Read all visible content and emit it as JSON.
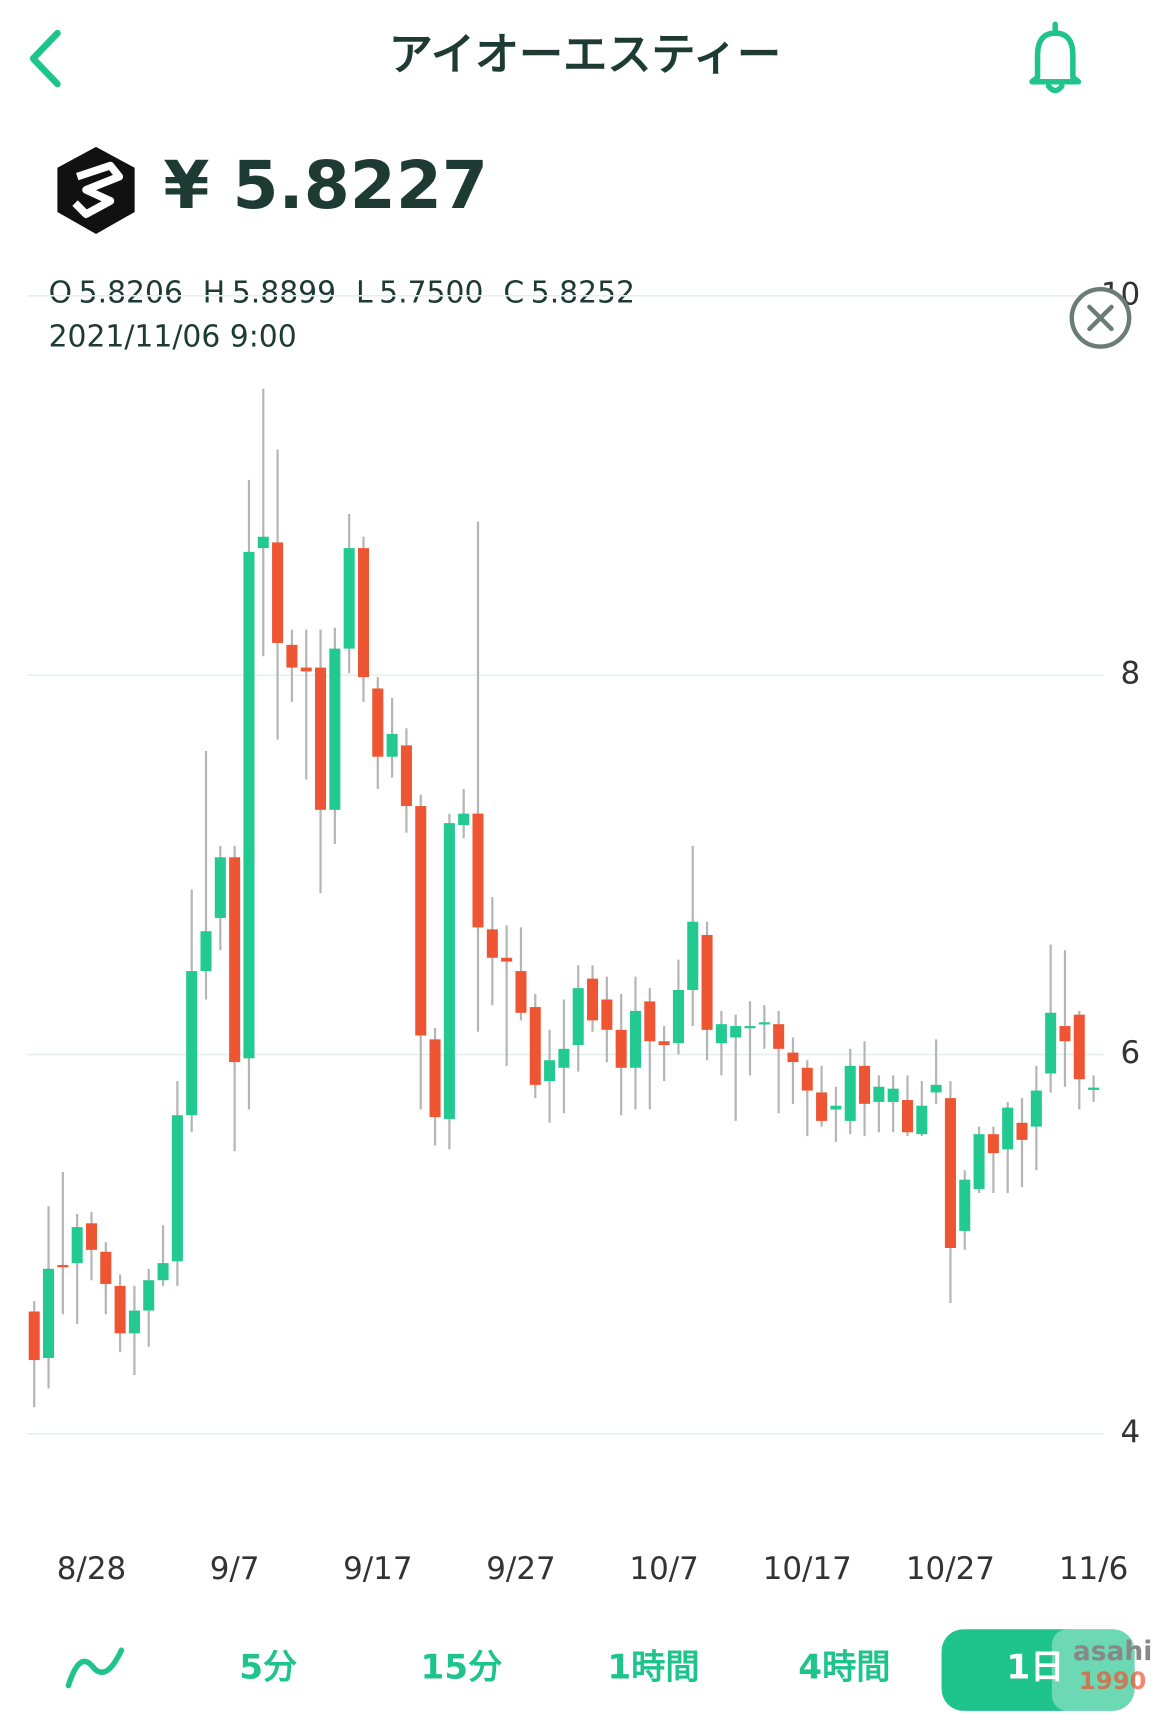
{
  "header": {
    "title": "アイオーエスティー"
  },
  "price": "¥ 5.8227",
  "ohlc": [
    {
      "label": "O",
      "value": "5.8206"
    },
    {
      "label": "H",
      "value": "5.8899"
    },
    {
      "label": "L",
      "value": "5.7500"
    },
    {
      "label": "C",
      "value": "5.8252"
    }
  ],
  "timestamp": "2021/11/06 9:00",
  "tabs": [
    "5分",
    "15分",
    "1時間",
    "4時間",
    "1日"
  ],
  "watermark": [
    "asahi",
    "1990"
  ],
  "chart_data": {
    "type": "candlestick",
    "categories": [
      null,
      null,
      null,
      null,
      "8/28",
      null,
      null,
      null,
      null,
      null,
      null,
      null,
      null,
      null,
      "9/7",
      null,
      null,
      null,
      null,
      null,
      null,
      null,
      null,
      null,
      "9/17",
      null,
      null,
      null,
      null,
      null,
      null,
      null,
      null,
      null,
      "9/27",
      null,
      null,
      null,
      null,
      null,
      null,
      null,
      null,
      null,
      "10/7",
      null,
      null,
      null,
      null,
      null,
      null,
      null,
      null,
      null,
      "10/17",
      null,
      null,
      null,
      null,
      null,
      null,
      null,
      null,
      null,
      "10/27",
      null,
      null,
      null,
      null,
      null,
      null,
      null,
      null,
      null,
      "11/6"
    ],
    "open": [
      4.645,
      4.4,
      4.89,
      4.9,
      5.11,
      4.96,
      4.78,
      4.53,
      4.65,
      4.81,
      4.91,
      5.68,
      6.44,
      6.72,
      7.04,
      5.98,
      8.67,
      8.7,
      8.16,
      8.04,
      8.04,
      7.29,
      8.14,
      8.67,
      7.93,
      7.57,
      7.63,
      7.31,
      6.08,
      5.66,
      7.21,
      7.27,
      6.66,
      6.51,
      6.44,
      6.25,
      5.86,
      5.93,
      6.05,
      6.4,
      6.29,
      6.13,
      5.93,
      6.28,
      6.07,
      6.06,
      6.34,
      6.63,
      6.06,
      6.09,
      6.15,
      6.16,
      6.16,
      6.01,
      5.93,
      5.8,
      5.71,
      5.65,
      5.94,
      5.75,
      5.75,
      5.76,
      5.58,
      5.8,
      5.77,
      5.07,
      5.29,
      5.58,
      5.5,
      5.64,
      5.62,
      5.9,
      6.15,
      6.21,
      5.8206
    ],
    "high": [
      4.7,
      5.2,
      5.38,
      5.16,
      5.17,
      5.01,
      4.84,
      4.78,
      4.87,
      5.1,
      5.86,
      6.87,
      7.6,
      7.1,
      7.1,
      9.03,
      9.51,
      9.19,
      8.24,
      8.24,
      8.24,
      8.25,
      8.85,
      8.73,
      7.99,
      7.88,
      7.72,
      7.37,
      6.14,
      7.27,
      7.4,
      8.81,
      6.83,
      6.68,
      6.67,
      6.32,
      6.13,
      6.29,
      6.47,
      6.47,
      6.41,
      6.32,
      6.41,
      6.35,
      6.15,
      6.5,
      7.1,
      6.7,
      6.23,
      6.21,
      6.28,
      6.26,
      6.23,
      6.09,
      5.97,
      5.94,
      5.83,
      6.03,
      6.07,
      5.89,
      5.89,
      5.89,
      5.86,
      6.08,
      5.86,
      5.39,
      5.62,
      5.62,
      5.75,
      5.77,
      5.94,
      6.58,
      6.55,
      6.23,
      5.8899
    ],
    "low": [
      4.14,
      4.24,
      4.63,
      4.58,
      4.81,
      4.63,
      4.43,
      4.31,
      4.46,
      4.78,
      4.78,
      5.59,
      6.29,
      6.55,
      5.49,
      5.71,
      8.1,
      7.66,
      7.86,
      7.45,
      6.85,
      7.11,
      8.01,
      7.86,
      7.4,
      7.46,
      7.17,
      5.71,
      5.52,
      5.5,
      7.14,
      6.12,
      6.26,
      5.94,
      6.18,
      5.77,
      5.64,
      5.69,
      5.91,
      6.12,
      5.96,
      5.68,
      5.71,
      5.71,
      5.86,
      6.0,
      6.15,
      5.97,
      5.89,
      5.65,
      5.89,
      6.03,
      5.69,
      5.74,
      5.57,
      5.62,
      5.54,
      5.58,
      5.57,
      5.59,
      5.59,
      5.57,
      5.57,
      5.74,
      4.69,
      4.97,
      5.27,
      5.27,
      5.27,
      5.3,
      5.39,
      5.8,
      5.83,
      5.71,
      5.75
    ],
    "close": [
      4.389,
      4.87,
      4.88,
      5.09,
      4.97,
      4.79,
      4.53,
      4.65,
      4.81,
      4.9,
      5.68,
      6.44,
      6.65,
      7.04,
      5.96,
      8.65,
      8.73,
      8.17,
      8.04,
      8.02,
      7.29,
      8.14,
      8.67,
      7.99,
      7.57,
      7.69,
      7.31,
      6.1,
      5.67,
      7.22,
      7.27,
      6.67,
      6.51,
      6.49,
      6.22,
      5.84,
      5.97,
      6.03,
      6.35,
      6.18,
      6.13,
      5.93,
      6.23,
      6.07,
      6.05,
      6.34,
      6.7,
      6.13,
      6.16,
      6.15,
      6.15,
      6.17,
      6.03,
      5.96,
      5.81,
      5.65,
      5.73,
      5.94,
      5.74,
      5.83,
      5.82,
      5.59,
      5.73,
      5.84,
      4.98,
      5.34,
      5.58,
      5.48,
      5.72,
      5.55,
      5.81,
      6.22,
      6.07,
      5.87,
      5.8252
    ],
    "up_color": "#22c990",
    "down_color": "#ee5532",
    "wick_color": "#b5b5b5",
    "ylim": [
      4,
      10
    ],
    "yticks": [
      4,
      6,
      8,
      10
    ],
    "grid": true
  }
}
